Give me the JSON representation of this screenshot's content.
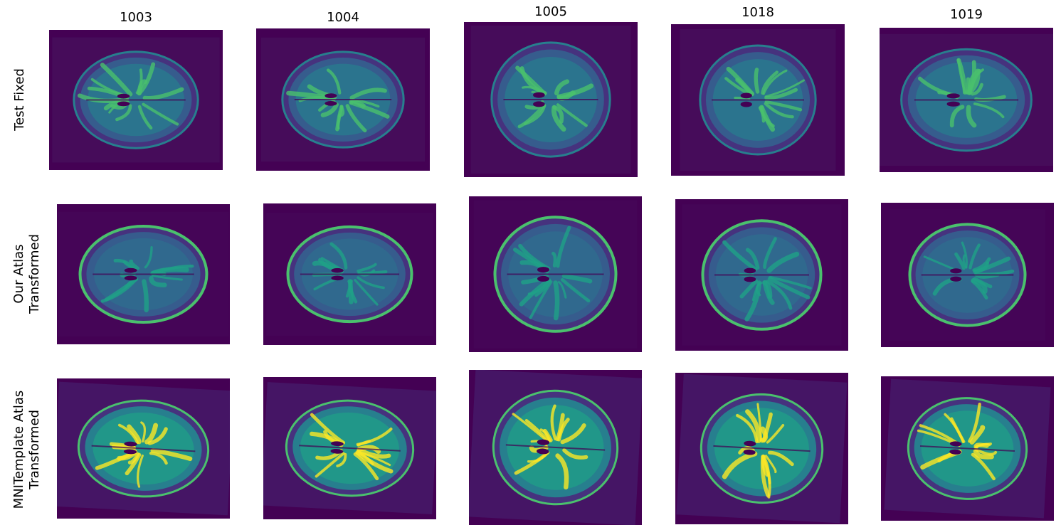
{
  "figure": {
    "columns": [
      "1003",
      "1004",
      "1005",
      "1018",
      "1019"
    ],
    "rows": [
      {
        "label_lines": [
          "Test Fixed"
        ],
        "style": "fixed"
      },
      {
        "label_lines": [
          "Our Atlas",
          "Transformed"
        ],
        "style": "atlas"
      },
      {
        "label_lines": [
          "MNITemplate Atlas",
          "Transformed"
        ],
        "style": "mni"
      }
    ],
    "colors": {
      "background_dark": "#440154",
      "viridis_purple": "#46327e",
      "viridis_blue": "#365c8d",
      "viridis_teal": "#277f8e",
      "viridis_green": "#1fa187",
      "viridis_light_green": "#4ac16d",
      "viridis_yellow": "#fde725"
    }
  }
}
